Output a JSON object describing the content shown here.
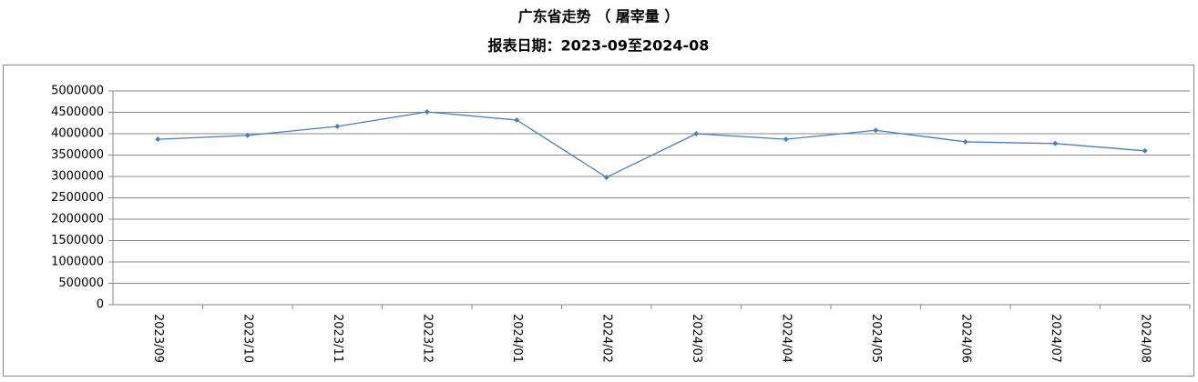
{
  "chart_data": {
    "type": "line",
    "title": "广东省走势 （ 屠宰量 ）",
    "subtitle": "报表日期：2023-09至2024-08",
    "categories": [
      "2023/09",
      "2023/10",
      "2023/11",
      "2023/12",
      "2024/01",
      "2024/02",
      "2024/03",
      "2024/04",
      "2024/05",
      "2024/06",
      "2024/07",
      "2024/08"
    ],
    "series": [
      {
        "name": "屠宰量",
        "color": "#4a7ebb",
        "values": [
          3870000,
          3960000,
          4170000,
          4510000,
          4320000,
          2980000,
          4000000,
          3870000,
          4080000,
          3810000,
          3770000,
          3600000
        ]
      }
    ],
    "ylim": [
      0,
      5000000
    ],
    "yticks": [
      0,
      500000,
      1000000,
      1500000,
      2000000,
      2500000,
      3000000,
      3500000,
      4000000,
      4500000,
      5000000
    ],
    "grid": true
  }
}
